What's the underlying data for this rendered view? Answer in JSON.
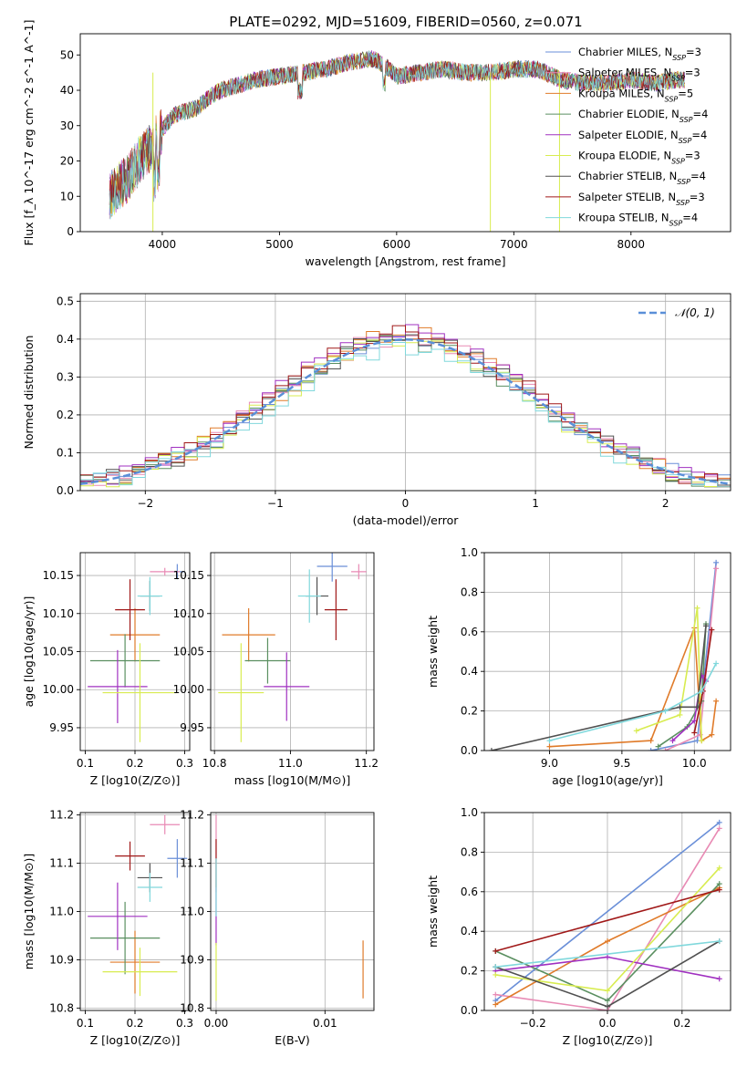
{
  "figure_title": "PLATE=0292, MJD=51609, FIBERID=0560, z=0.071",
  "colors": {
    "Chabrier MILES": "#6a8fd8",
    "Salpeter MILES": "#e88ab4",
    "Kroupa MILES": "#e07b2a",
    "Chabrier ELODIE": "#5a8f60",
    "Salpeter ELODIE": "#a030c0",
    "Kroupa ELODIE": "#d8ec50",
    "Chabrier STELIB": "#505050",
    "Salpeter STELIB": "#a01818",
    "Kroupa STELIB": "#80d8dc",
    "normal_curve": "#5a8fd8",
    "grid": "#b0b0b0"
  },
  "chart_data": [
    {
      "id": "spectrum",
      "type": "line",
      "xlabel": "wavelength [Angstrom, rest frame]",
      "ylabel": "Flux [f_λ 10^-17 erg cm^-2 s^-1 A^-1]",
      "xlim": [
        3300,
        8850
      ],
      "ylim": [
        0,
        56
      ],
      "xticks": [
        4000,
        5000,
        6000,
        7000,
        8000
      ],
      "yticks": [
        0,
        10,
        20,
        30,
        40,
        50
      ],
      "grid": false,
      "legend_position": "top-right",
      "legend": [
        {
          "name": "Chabrier MILES",
          "nssp": "3"
        },
        {
          "name": "Salpeter MILES",
          "nssp": "3"
        },
        {
          "name": "Kroupa MILES",
          "nssp": "5"
        },
        {
          "name": "Chabrier ELODIE",
          "nssp": "4"
        },
        {
          "name": "Salpeter ELODIE",
          "nssp": "4"
        },
        {
          "name": "Kroupa ELODIE",
          "nssp": "3"
        },
        {
          "name": "Chabrier STELIB",
          "nssp": "4"
        },
        {
          "name": "Salpeter STELIB",
          "nssp": "3"
        },
        {
          "name": "Kroupa STELIB",
          "nssp": "4"
        }
      ],
      "continuum_x": [
        3550,
        3700,
        3800,
        3900,
        4000,
        4100,
        4200,
        4300,
        4400,
        4500,
        4600,
        4700,
        4800,
        5000,
        5200,
        5400,
        5600,
        5800,
        5900,
        6000,
        6200,
        6400,
        6600,
        6800,
        7000,
        7200,
        7400,
        7600,
        7800,
        8000,
        8200,
        8400,
        8460
      ],
      "continuum_y": [
        10,
        15,
        20,
        24,
        29,
        33,
        34,
        35,
        38,
        40,
        41,
        42,
        43,
        44,
        45,
        46,
        48,
        49,
        47,
        44,
        45,
        46,
        45,
        45,
        46,
        46,
        43,
        42,
        42,
        43,
        42,
        43,
        43
      ]
    },
    {
      "id": "residuals",
      "type": "histogram",
      "xlabel": "(data-model)/error",
      "ylabel": "Normed distribution",
      "xlim": [
        -2.5,
        2.5
      ],
      "ylim": [
        0,
        0.52
      ],
      "xticks": [
        -2,
        -1,
        0,
        1,
        2
      ],
      "yticks": [
        0.0,
        0.1,
        0.2,
        0.3,
        0.4,
        0.5
      ],
      "grid": true,
      "legend_position": "top-right",
      "legend": [
        {
          "name": "N(0,1)"
        }
      ],
      "bin_width": 0.1,
      "series_amplitude": [
        0.4,
        0.405,
        0.41,
        0.395,
        0.42,
        0.39,
        0.4,
        0.415,
        0.38
      ]
    },
    {
      "id": "age-vs-Z",
      "type": "scatter",
      "xlabel": "Z [log10(Z/Z⊙)]",
      "ylabel": "age [log10(age/yr)]",
      "xlim": [
        0.09,
        0.31
      ],
      "ylim": [
        9.92,
        10.18
      ],
      "xticks": [
        0.1,
        0.2,
        0.3
      ],
      "yticks": [
        9.95,
        10.0,
        10.05,
        10.1,
        10.15
      ],
      "grid": true,
      "points": [
        {
          "series": "Chabrier MILES",
          "x": 0.285,
          "y": 10.155,
          "xerr": 0.015,
          "yerr": 0.01
        },
        {
          "series": "Salpeter MILES",
          "x": 0.26,
          "y": 10.155,
          "xerr": 0.03,
          "yerr": 0.005
        },
        {
          "series": "Kroupa MILES",
          "x": 0.2,
          "y": 10.072,
          "xerr": 0.05,
          "yerr": 0.035
        },
        {
          "series": "Chabrier ELODIE",
          "x": 0.18,
          "y": 10.038,
          "xerr": 0.07,
          "yerr": 0.035
        },
        {
          "series": "Salpeter ELODIE",
          "x": 0.165,
          "y": 10.004,
          "xerr": 0.06,
          "yerr": 0.048
        },
        {
          "series": "Kroupa ELODIE",
          "x": 0.21,
          "y": 9.996,
          "xerr": 0.075,
          "yerr": 0.065
        },
        {
          "series": "Chabrier STELIB",
          "x": 0.23,
          "y": 10.123,
          "xerr": 0.02,
          "yerr": 0.02
        },
        {
          "series": "Salpeter STELIB",
          "x": 0.19,
          "y": 10.105,
          "xerr": 0.03,
          "yerr": 0.04
        },
        {
          "series": "Kroupa STELIB",
          "x": 0.23,
          "y": 10.123,
          "xerr": 0.025,
          "yerr": 0.025
        }
      ]
    },
    {
      "id": "age-vs-mass",
      "type": "scatter",
      "xlabel": "mass [log10(M/M⊙)]",
      "ylabel": "",
      "xlim": [
        10.79,
        11.22
      ],
      "ylim": [
        9.92,
        10.18
      ],
      "xticks": [
        10.8,
        11.0,
        11.2
      ],
      "yticks": [
        9.95,
        10.0,
        10.05,
        10.1,
        10.15
      ],
      "grid": true,
      "points": [
        {
          "series": "Chabrier MILES",
          "x": 11.11,
          "y": 10.162,
          "xerr": 0.04,
          "yerr": 0.02
        },
        {
          "series": "Salpeter MILES",
          "x": 11.18,
          "y": 10.155,
          "xerr": 0.02,
          "yerr": 0.01
        },
        {
          "series": "Kroupa MILES",
          "x": 10.89,
          "y": 10.072,
          "xerr": 0.07,
          "yerr": 0.035
        },
        {
          "series": "Chabrier ELODIE",
          "x": 10.94,
          "y": 10.038,
          "xerr": 0.06,
          "yerr": 0.03
        },
        {
          "series": "Salpeter ELODIE",
          "x": 10.99,
          "y": 10.004,
          "xerr": 0.06,
          "yerr": 0.045
        },
        {
          "series": "Kroupa ELODIE",
          "x": 10.87,
          "y": 9.996,
          "xerr": 0.06,
          "yerr": 0.065
        },
        {
          "series": "Chabrier STELIB",
          "x": 11.07,
          "y": 10.123,
          "xerr": 0.03,
          "yerr": 0.025
        },
        {
          "series": "Salpeter STELIB",
          "x": 11.12,
          "y": 10.105,
          "xerr": 0.03,
          "yerr": 0.04
        },
        {
          "series": "Kroupa STELIB",
          "x": 11.05,
          "y": 10.123,
          "xerr": 0.03,
          "yerr": 0.035
        }
      ]
    },
    {
      "id": "weight-vs-age",
      "type": "line",
      "xlabel": "age [log10(age/yr)]",
      "ylabel": "mass weight",
      "xlim": [
        8.55,
        10.25
      ],
      "ylim": [
        0,
        1.0
      ],
      "xticks": [
        9.0,
        9.5,
        10.0
      ],
      "yticks": [
        0.0,
        0.2,
        0.4,
        0.6,
        0.8,
        1.0
      ],
      "grid": true,
      "series": [
        {
          "name": "Chabrier MILES",
          "x": [
            9.7,
            10.02,
            10.15
          ],
          "y": [
            0.0,
            0.05,
            0.95
          ]
        },
        {
          "name": "Salpeter MILES",
          "x": [
            9.8,
            10.04,
            10.15
          ],
          "y": [
            0.0,
            0.08,
            0.92
          ]
        },
        {
          "name": "Kroupa MILES",
          "x": [
            9.0,
            9.7,
            10.0,
            10.05,
            10.12,
            10.15
          ],
          "y": [
            0.02,
            0.05,
            0.62,
            0.05,
            0.08,
            0.25
          ]
        },
        {
          "name": "Chabrier ELODIE",
          "x": [
            9.75,
            9.95,
            10.05,
            10.08
          ],
          "y": [
            0.02,
            0.12,
            0.25,
            0.64
          ]
        },
        {
          "name": "Salpeter ELODIE",
          "x": [
            9.85,
            10.0,
            10.05,
            10.08
          ],
          "y": [
            0.05,
            0.15,
            0.38,
            0.35
          ]
        },
        {
          "name": "Kroupa ELODIE",
          "x": [
            9.6,
            9.9,
            10.02,
            10.05
          ],
          "y": [
            0.1,
            0.18,
            0.72,
            0.05
          ]
        },
        {
          "name": "Chabrier STELIB",
          "x": [
            8.6,
            9.9,
            10.02,
            10.08
          ],
          "y": [
            0.0,
            0.22,
            0.22,
            0.63
          ]
        },
        {
          "name": "Salpeter STELIB",
          "x": [
            10.0,
            10.06,
            10.12
          ],
          "y": [
            0.09,
            0.3,
            0.61
          ]
        },
        {
          "name": "Kroupa STELIB",
          "x": [
            9.0,
            9.8,
            10.05,
            10.15
          ],
          "y": [
            0.05,
            0.2,
            0.3,
            0.44
          ]
        }
      ]
    },
    {
      "id": "mass-vs-Z",
      "type": "scatter",
      "xlabel": "Z [log10(Z/Z⊙)]",
      "ylabel": "mass [log10(M/M⊙)]",
      "xlim": [
        0.09,
        0.31
      ],
      "ylim": [
        10.795,
        11.205
      ],
      "xticks": [
        0.1,
        0.2,
        0.3
      ],
      "yticks": [
        10.8,
        10.9,
        11.0,
        11.1,
        11.2
      ],
      "grid": true,
      "points": [
        {
          "series": "Chabrier MILES",
          "x": 0.285,
          "y": 11.11,
          "xerr": 0.02,
          "yerr": 0.04
        },
        {
          "series": "Salpeter MILES",
          "x": 0.26,
          "y": 11.18,
          "xerr": 0.03,
          "yerr": 0.02
        },
        {
          "series": "Kroupa MILES",
          "x": 0.2,
          "y": 10.895,
          "xerr": 0.05,
          "yerr": 0.065
        },
        {
          "series": "Chabrier ELODIE",
          "x": 0.18,
          "y": 10.945,
          "xerr": 0.07,
          "yerr": 0.075
        },
        {
          "series": "Salpeter ELODIE",
          "x": 0.165,
          "y": 10.99,
          "xerr": 0.06,
          "yerr": 0.07
        },
        {
          "series": "Kroupa ELODIE",
          "x": 0.21,
          "y": 10.875,
          "xerr": 0.075,
          "yerr": 0.05
        },
        {
          "series": "Chabrier STELIB",
          "x": 0.23,
          "y": 11.07,
          "xerr": 0.025,
          "yerr": 0.03
        },
        {
          "series": "Salpeter STELIB",
          "x": 0.19,
          "y": 11.115,
          "xerr": 0.03,
          "yerr": 0.03
        },
        {
          "series": "Kroupa STELIB",
          "x": 0.23,
          "y": 11.05,
          "xerr": 0.025,
          "yerr": 0.03
        }
      ]
    },
    {
      "id": "mass-vs-EBV",
      "type": "scatter",
      "xlabel": "E(B-V)",
      "ylabel": "",
      "xlim": [
        -0.0005,
        0.0145
      ],
      "ylim": [
        10.795,
        11.205
      ],
      "xticks": [
        0.0,
        0.01
      ],
      "yticks": [
        10.8,
        10.9,
        11.0,
        11.1,
        11.2
      ],
      "grid": true,
      "points": [
        {
          "series": "Salpeter MILES",
          "x": 0.0,
          "y": 11.12,
          "xerr": 0,
          "yerr": 0.08
        },
        {
          "series": "Salpeter ELODIE",
          "x": 0.0,
          "y": 10.99,
          "xerr": 0,
          "yerr": 0.06
        },
        {
          "series": "Salpeter STELIB",
          "x": 0.0,
          "y": 11.1,
          "xerr": 0,
          "yerr": 0.05
        },
        {
          "series": "Kroupa STELIB",
          "x": 0.0,
          "y": 11.05,
          "xerr": 0,
          "yerr": 0.06
        },
        {
          "series": "Kroupa ELODIE",
          "x": 0.0,
          "y": 10.875,
          "xerr": 0,
          "yerr": 0.06
        },
        {
          "series": "Kroupa MILES",
          "x": 0.0135,
          "y": 10.88,
          "xerr": 0,
          "yerr": 0.06
        }
      ]
    },
    {
      "id": "weight-vs-Z",
      "type": "line",
      "xlabel": "Z [log10(Z/Z⊙)]",
      "ylabel": "mass weight",
      "xlim": [
        -0.33,
        0.33
      ],
      "ylim": [
        0,
        1.0
      ],
      "xticks": [
        -0.2,
        0.0,
        0.2
      ],
      "yticks": [
        0.0,
        0.2,
        0.4,
        0.6,
        0.8,
        1.0
      ],
      "grid": true,
      "series": [
        {
          "name": "Chabrier MILES",
          "x": [
            -0.3,
            0.3
          ],
          "y": [
            0.05,
            0.95
          ]
        },
        {
          "name": "Salpeter MILES",
          "x": [
            -0.3,
            0.0,
            0.3
          ],
          "y": [
            0.08,
            0.0,
            0.92
          ]
        },
        {
          "name": "Kroupa MILES",
          "x": [
            -0.3,
            0.0,
            0.3
          ],
          "y": [
            0.03,
            0.35,
            0.62
          ]
        },
        {
          "name": "Chabrier ELODIE",
          "x": [
            -0.3,
            0.0,
            0.3
          ],
          "y": [
            0.3,
            0.05,
            0.64
          ]
        },
        {
          "name": "Salpeter ELODIE",
          "x": [
            -0.3,
            0.0,
            0.3
          ],
          "y": [
            0.2,
            0.27,
            0.16
          ]
        },
        {
          "name": "Kroupa ELODIE",
          "x": [
            -0.3,
            0.0,
            0.3
          ],
          "y": [
            0.18,
            0.1,
            0.72
          ]
        },
        {
          "name": "Chabrier STELIB",
          "x": [
            -0.3,
            0.0,
            0.3
          ],
          "y": [
            0.22,
            0.02,
            0.35
          ]
        },
        {
          "name": "Salpeter STELIB",
          "x": [
            -0.3,
            0.3
          ],
          "y": [
            0.3,
            0.61
          ]
        },
        {
          "name": "Kroupa STELIB",
          "x": [
            -0.3,
            0.3
          ],
          "y": [
            0.22,
            0.35
          ]
        }
      ]
    }
  ]
}
